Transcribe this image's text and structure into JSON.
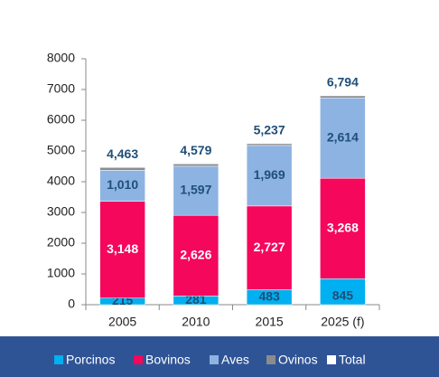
{
  "chart_data": {
    "type": "stacked_bar",
    "categories": [
      "2005",
      "2010",
      "2015",
      "2025 (f)"
    ],
    "series": [
      {
        "name": "Porcinos",
        "color": "#00b0f0",
        "values": [
          215,
          281,
          483,
          845
        ]
      },
      {
        "name": "Bovinos",
        "color": "#f5075c",
        "values": [
          3148,
          2626,
          2727,
          3268
        ],
        "value_labels": [
          "3,148",
          "2,626",
          "2,727",
          "3,268"
        ]
      },
      {
        "name": "Aves",
        "color": "#8db3e2",
        "values": [
          1010,
          1597,
          1969,
          2614
        ],
        "value_labels": [
          "1,010",
          "1,597",
          "1,969",
          "2,614"
        ]
      },
      {
        "name": "Ovinos",
        "color": "#8c8c8c",
        "values": [
          90,
          75,
          58,
          67
        ]
      },
      {
        "name": "Total",
        "color": "#ffffff",
        "values": [
          4463,
          4579,
          5237,
          6794
        ],
        "value_labels": [
          "4,463",
          "4,579",
          "5,237",
          "6,794"
        ]
      }
    ],
    "ylim": [
      0,
      8000
    ],
    "yticks": [
      0,
      1000,
      2000,
      3000,
      4000,
      5000,
      6000,
      7000,
      8000
    ],
    "grid": false,
    "legend": "bottom"
  }
}
